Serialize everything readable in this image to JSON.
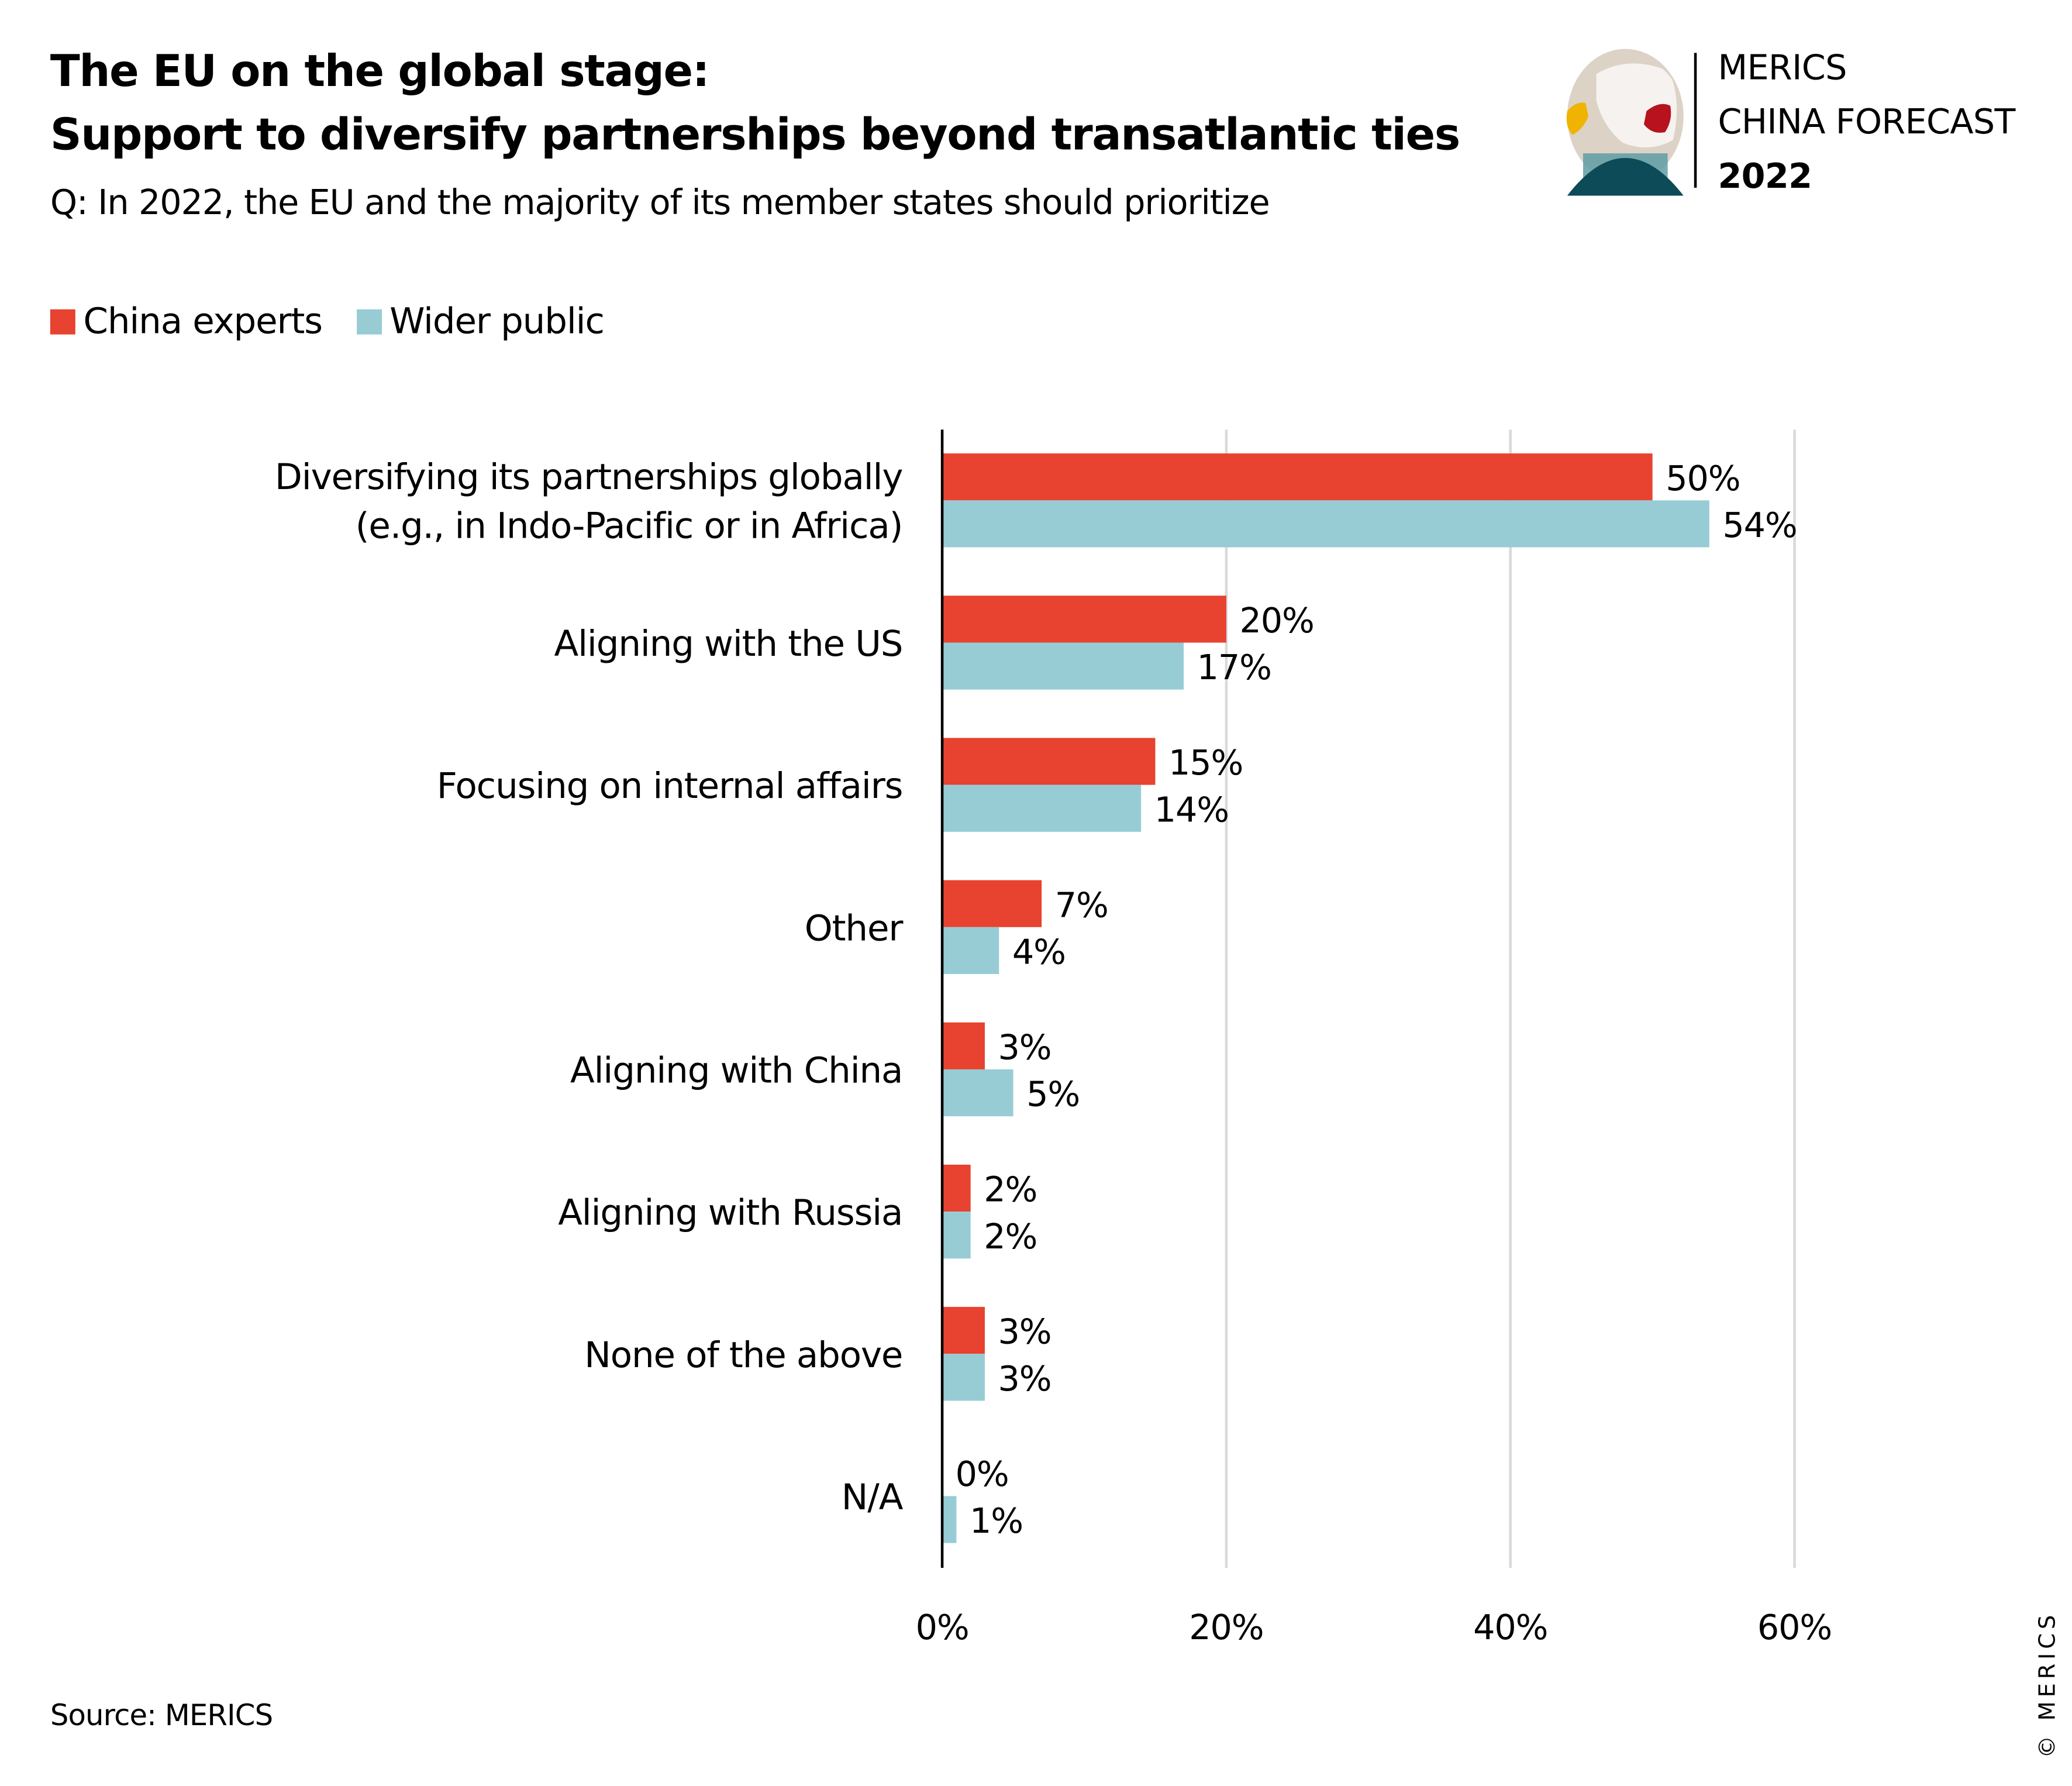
{
  "header": {
    "title_line1": "The EU on the global stage:",
    "title_line2": "Support to diversify partnerships beyond transatlantic ties",
    "question": "Q: In 2022, the EU and the majority of its member states should prioritize"
  },
  "logo": {
    "icon": "globe-icon",
    "line1": "MERICS",
    "line2": "CHINA FORECAST",
    "year": "2022"
  },
  "footer": {
    "source": "Source: MERICS",
    "copyright": "© MERICS"
  },
  "colors": {
    "china_experts": "#e84230",
    "wider_public": "#97ccd5",
    "gridline": "#d9d9d9",
    "axis": "#000000"
  },
  "chart_data": {
    "type": "bar",
    "orientation": "horizontal",
    "title": "The EU on the global stage: Support to diversify partnerships beyond transatlantic ties",
    "subtitle": "Q: In 2022, the EU and the majority of its member states should prioritize",
    "xlabel": "",
    "ylabel": "",
    "xlim": [
      0,
      60
    ],
    "x_ticks": [
      0,
      20,
      40,
      60
    ],
    "x_tick_labels": [
      "0%",
      "20%",
      "40%",
      "60%"
    ],
    "grid": true,
    "legend_position": "top-left",
    "categories": [
      [
        "Diversifying its partnerships globally",
        "(e.g., in Indo-Pacific or in Africa)"
      ],
      [
        "Aligning with the US"
      ],
      [
        "Focusing on internal affairs"
      ],
      [
        "Other"
      ],
      [
        "Aligning with China"
      ],
      [
        "Aligning with Russia"
      ],
      [
        "None of the above"
      ],
      [
        "N/A"
      ]
    ],
    "series": [
      {
        "name": "China experts",
        "color": "#e84230",
        "values": [
          50,
          20,
          15,
          7,
          3,
          2,
          3,
          0
        ],
        "labels": [
          "50%",
          "20%",
          "15%",
          "7%",
          "3%",
          "2%",
          "3%",
          "0%"
        ]
      },
      {
        "name": "Wider public",
        "color": "#97ccd5",
        "values": [
          54,
          17,
          14,
          4,
          5,
          2,
          3,
          1
        ],
        "labels": [
          "54%",
          "17%",
          "14%",
          "4%",
          "5%",
          "2%",
          "3%",
          "1%"
        ]
      }
    ]
  }
}
